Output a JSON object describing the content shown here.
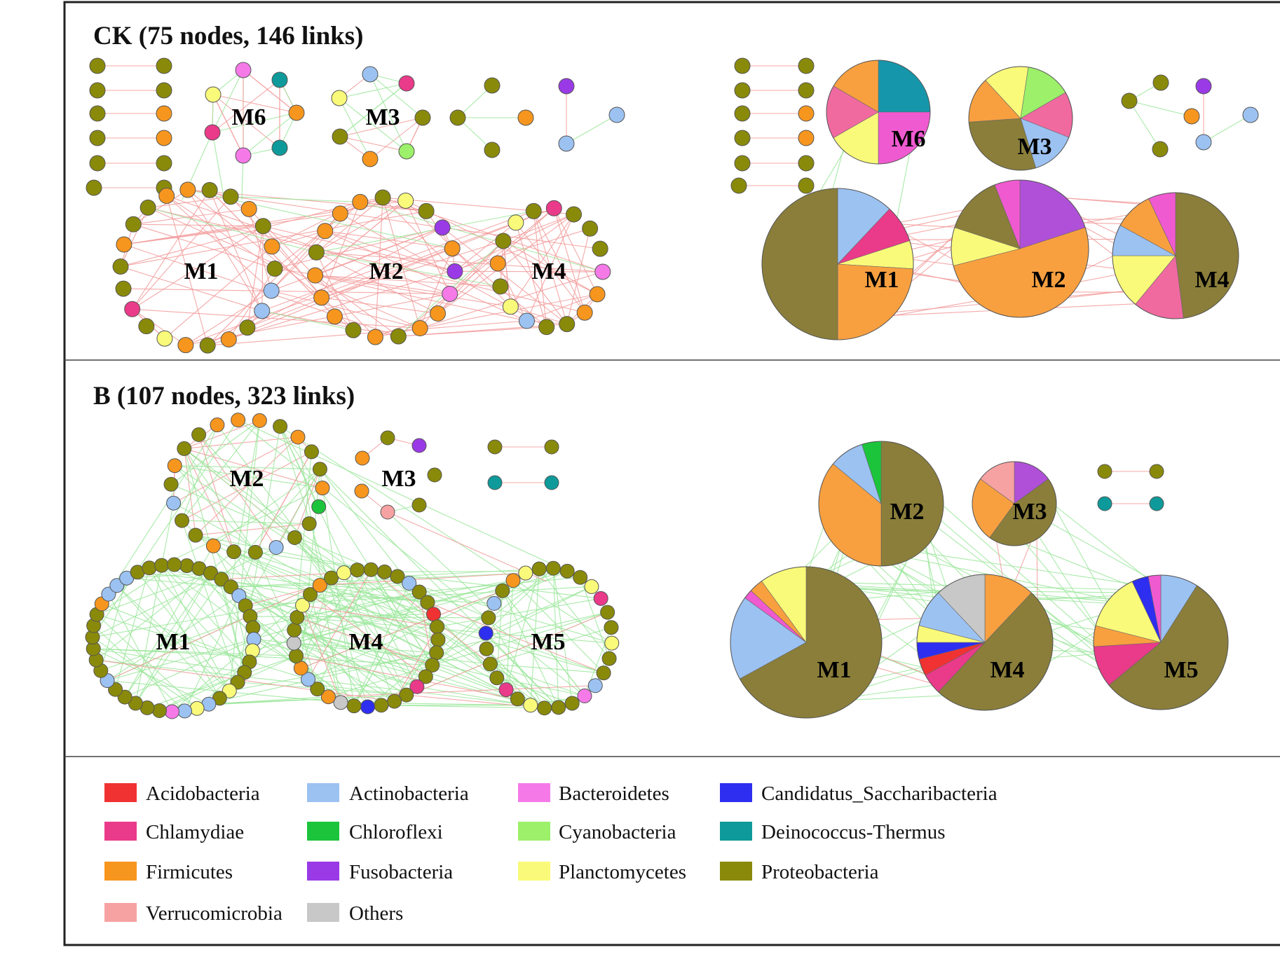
{
  "colors": {
    "Acidobacteria": "#f03232",
    "Actinobacteria": "#9cc2f2",
    "Bacteroidetes": "#f57ae8",
    "Candidatus_Saccharibacteria": "#2e2ef0",
    "Chlamydiae": "#ea3a8a",
    "Chloroflexi": "#1cc43c",
    "Cyanobacteria": "#9cf06a",
    "Deinococcus-Thermus": "#0e9a9a",
    "Firmicutes": "#f7961e",
    "Fusobacteria": "#9a3ae6",
    "Planctomycetes": "#fafa7a",
    "Proteobacteria": "#8a8a0a",
    "Verrucomicrobia": "#f7a2a2",
    "Others": "#c8c8c8",
    "pie_Proteobacteria": "#8a7e3a",
    "pie_Firmicutes": "#f8a040",
    "pie_Fusobacteria": "#b050d8",
    "pie_Deinococcus": "#1696aa",
    "pie_Chlamydiae": "#f06aa0",
    "pie_Bacteroidetes": "#f05ad0",
    "edge_positive": "#f29a9a",
    "edge_negative": "#9ae69a"
  },
  "panels": [
    {
      "id": "ck",
      "title": "CK (75 nodes, 146 links)",
      "modules": [
        {
          "label": "M1"
        },
        {
          "label": "M2"
        },
        {
          "label": "M4"
        },
        {
          "label": "M6"
        },
        {
          "label": "M3"
        }
      ],
      "pies": [
        {
          "label": "M6",
          "slices": [
            {
              "taxon": "pie_Deinococcus",
              "value": 25
            },
            {
              "taxon": "pie_Bacteroidetes",
              "value": 25
            },
            {
              "taxon": "Planctomycetes",
              "value": 16.7
            },
            {
              "taxon": "pie_Chlamydiae",
              "value": 16.7
            },
            {
              "taxon": "pie_Firmicutes",
              "value": 16.6
            }
          ]
        },
        {
          "label": "M3",
          "slices": [
            {
              "taxon": "pie_Chlamydiae",
              "value": 14.3
            },
            {
              "taxon": "Actinobacteria",
              "value": 14.3
            },
            {
              "taxon": "pie_Proteobacteria",
              "value": 28.6
            },
            {
              "taxon": "pie_Firmicutes",
              "value": 14.3
            },
            {
              "taxon": "Planctomycetes",
              "value": 14.2
            },
            {
              "taxon": "Cyanobacteria",
              "value": 14.3
            }
          ]
        },
        {
          "label": "M1",
          "slices": [
            {
              "taxon": "Actinobacteria",
              "value": 12
            },
            {
              "taxon": "Chlamydiae",
              "value": 8
            },
            {
              "taxon": "Planctomycetes",
              "value": 6
            },
            {
              "taxon": "pie_Firmicutes",
              "value": 24
            },
            {
              "taxon": "pie_Proteobacteria",
              "value": 50
            }
          ]
        },
        {
          "label": "M2",
          "slices": [
            {
              "taxon": "pie_Fusobacteria",
              "value": 20
            },
            {
              "taxon": "pie_Firmicutes",
              "value": 51
            },
            {
              "taxon": "Planctomycetes",
              "value": 9
            },
            {
              "taxon": "pie_Proteobacteria",
              "value": 14
            },
            {
              "taxon": "pie_Bacteroidetes",
              "value": 6
            }
          ]
        },
        {
          "label": "M4",
          "slices": [
            {
              "taxon": "pie_Proteobacteria",
              "value": 48
            },
            {
              "taxon": "pie_Chlamydiae",
              "value": 13
            },
            {
              "taxon": "Planctomycetes",
              "value": 14
            },
            {
              "taxon": "Actinobacteria",
              "value": 8
            },
            {
              "taxon": "pie_Firmicutes",
              "value": 10
            },
            {
              "taxon": "pie_Bacteroidetes",
              "value": 7
            }
          ]
        }
      ]
    },
    {
      "id": "b",
      "title": "B (107 nodes, 323 links)",
      "modules": [
        {
          "label": "M2"
        },
        {
          "label": "M3"
        },
        {
          "label": "M1"
        },
        {
          "label": "M4"
        },
        {
          "label": "M5"
        }
      ],
      "pies": [
        {
          "label": "M2",
          "slices": [
            {
              "taxon": "pie_Proteobacteria",
              "value": 50
            },
            {
              "taxon": "pie_Firmicutes",
              "value": 36
            },
            {
              "taxon": "Actinobacteria",
              "value": 9
            },
            {
              "taxon": "Chloroflexi",
              "value": 5
            }
          ]
        },
        {
          "label": "M3",
          "slices": [
            {
              "taxon": "pie_Fusobacteria",
              "value": 15
            },
            {
              "taxon": "pie_Proteobacteria",
              "value": 45
            },
            {
              "taxon": "pie_Firmicutes",
              "value": 25
            },
            {
              "taxon": "Verrucomicrobia",
              "value": 15
            }
          ]
        },
        {
          "label": "M1",
          "slices": [
            {
              "taxon": "pie_Proteobacteria",
              "value": 67
            },
            {
              "taxon": "Actinobacteria",
              "value": 18
            },
            {
              "taxon": "pie_Bacteroidetes",
              "value": 2
            },
            {
              "taxon": "pie_Firmicutes",
              "value": 3
            },
            {
              "taxon": "Planctomycetes",
              "value": 10
            }
          ]
        },
        {
          "label": "M4",
          "slices": [
            {
              "taxon": "pie_Firmicutes",
              "value": 12
            },
            {
              "taxon": "pie_Proteobacteria",
              "value": 50
            },
            {
              "taxon": "Chlamydiae",
              "value": 5
            },
            {
              "taxon": "Acidobacteria",
              "value": 4
            },
            {
              "taxon": "Candidatus_Saccharibacteria",
              "value": 4
            },
            {
              "taxon": "Planctomycetes",
              "value": 4
            },
            {
              "taxon": "Actinobacteria",
              "value": 9
            },
            {
              "taxon": "Others",
              "value": 12
            }
          ]
        },
        {
          "label": "M5",
          "slices": [
            {
              "taxon": "Actinobacteria",
              "value": 9
            },
            {
              "taxon": "pie_Proteobacteria",
              "value": 55
            },
            {
              "taxon": "Chlamydiae",
              "value": 10
            },
            {
              "taxon": "pie_Firmicutes",
              "value": 5
            },
            {
              "taxon": "Planctomycetes",
              "value": 14
            },
            {
              "taxon": "Candidatus_Saccharibacteria",
              "value": 4
            },
            {
              "taxon": "pie_Bacteroidetes",
              "value": 3
            }
          ]
        }
      ]
    }
  ],
  "legend": [
    {
      "label": "Acidobacteria",
      "color": "#f03232"
    },
    {
      "label": "Actinobacteria",
      "color": "#9cc2f2"
    },
    {
      "label": "Bacteroidetes",
      "color": "#f57ae8"
    },
    {
      "label": "Candidatus_Saccharibacteria",
      "color": "#2e2ef0"
    },
    {
      "label": "Chlamydiae",
      "color": "#ea3a8a"
    },
    {
      "label": "Chloroflexi",
      "color": "#1cc43c"
    },
    {
      "label": "Cyanobacteria",
      "color": "#9cf06a"
    },
    {
      "label": "Deinococcus-Thermus",
      "color": "#0e9a9a"
    },
    {
      "label": "Firmicutes",
      "color": "#f7961e"
    },
    {
      "label": "Fusobacteria",
      "color": "#9a3ae6"
    },
    {
      "label": "Planctomycetes",
      "color": "#fafa7a"
    },
    {
      "label": "Proteobacteria",
      "color": "#8a8a0a"
    },
    {
      "label": "Verrucomicrobia",
      "color": "#f7a2a2"
    },
    {
      "label": "Others",
      "color": "#c8c8c8"
    }
  ]
}
